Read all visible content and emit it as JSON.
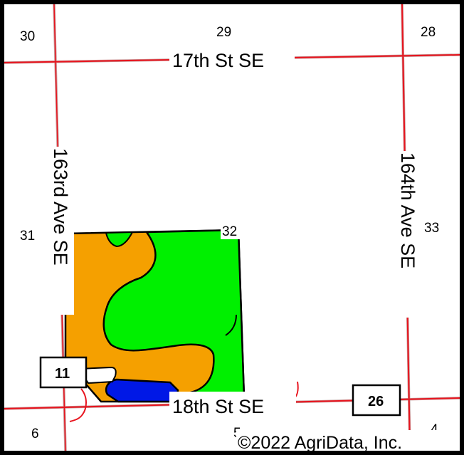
{
  "map": {
    "roads": {
      "north": "17th St SE",
      "south": "18th St SE",
      "west": "163rd Ave SE",
      "east": "164th Ave SE"
    },
    "sections": {
      "nw": "30",
      "n": "29",
      "ne": "28",
      "w": "31",
      "center": "32",
      "e": "33",
      "sw": "6",
      "s": "5",
      "se": "4"
    },
    "shields": {
      "west": "11",
      "east": "26"
    },
    "copyright": "©2022 AgriData, Inc.",
    "colors": {
      "section_line": "#c89a9a",
      "road": "#e8141e",
      "soil_orange": "#f5a000",
      "soil_green": "#00f000",
      "soil_blue": "#0018e6",
      "border": "#000000"
    }
  }
}
